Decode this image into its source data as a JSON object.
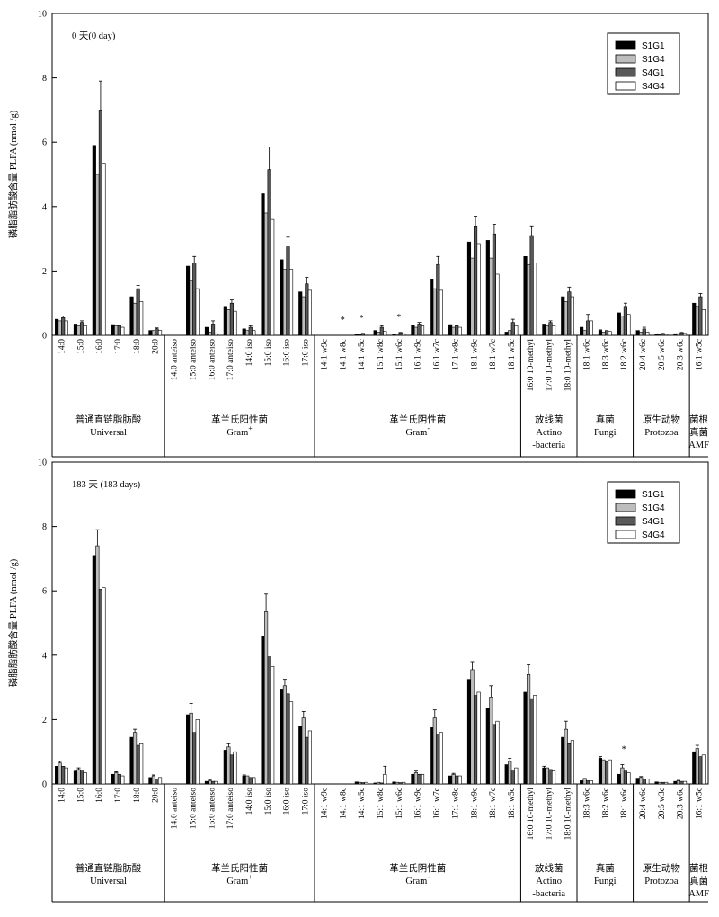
{
  "chart_data": [
    {
      "type": "bar",
      "title": "0 天(0 day)",
      "ylabel": "磷脂脂肪酸含量 PLFA (nmol /g)",
      "ylim": [
        0,
        10
      ],
      "yticks": [
        0,
        2,
        4,
        6,
        8,
        10
      ],
      "legend_position": "top-right",
      "categories": [
        "14:0",
        "15:0",
        "16:0",
        "17:0",
        "18:0",
        "20:0",
        "14:0 anteiso",
        "15:0 anteiso",
        "16:0 anteiso",
        "17:0 anteiso",
        "14:0 iso",
        "15:0 iso",
        "16:0 iso",
        "17:0 iso",
        "14:1 w9c",
        "14:1 w8c",
        "14:1 w5c",
        "15:1 w8c",
        "15:1 w6c",
        "16:1 w9c",
        "16:1 w7c",
        "17:1 w8c",
        "18:1 w9c",
        "18:1 w7c",
        "18:1 w5c",
        "16:0 10-methyl",
        "17:0 10-methyl",
        "18:0 10-methyl",
        "18:1 w6c",
        "18:3 w6c",
        "18:2 w6c",
        "20:4 w6c",
        "20:5 w6c",
        "20:3 w6c",
        "16:1 w5c"
      ],
      "series": [
        {
          "name": "S1G1",
          "values": [
            0.5,
            0.35,
            5.9,
            0.3,
            1.2,
            0.15,
            0.0,
            2.15,
            0.25,
            0.9,
            0.2,
            4.4,
            2.35,
            1.35,
            0.0,
            0.0,
            0.02,
            0.15,
            0.03,
            0.3,
            1.75,
            0.3,
            2.9,
            2.95,
            0.1,
            2.45,
            0.35,
            1.2,
            0.25,
            0.15,
            0.7,
            0.15,
            0.03,
            0.05,
            1.0
          ]
        },
        {
          "name": "S1G4",
          "values": [
            0.45,
            0.3,
            5.0,
            0.3,
            1.0,
            0.15,
            0.0,
            1.7,
            0.1,
            0.8,
            0.15,
            3.8,
            2.05,
            1.2,
            0.0,
            0.0,
            0.02,
            0.1,
            0.03,
            0.25,
            1.45,
            0.25,
            2.4,
            2.4,
            0.15,
            2.2,
            0.3,
            1.05,
            0.15,
            0.1,
            0.6,
            0.1,
            0.02,
            0.05,
            0.9
          ]
        },
        {
          "name": "S4G1",
          "values": [
            0.55,
            0.4,
            7.0,
            0.3,
            1.45,
            0.2,
            0.0,
            2.25,
            0.35,
            1.0,
            0.25,
            5.15,
            2.75,
            1.6,
            0.0,
            0.0,
            0.05,
            0.25,
            0.08,
            0.35,
            2.2,
            0.3,
            3.4,
            3.15,
            0.4,
            3.1,
            0.4,
            1.35,
            0.45,
            0.15,
            0.9,
            0.2,
            0.05,
            0.08,
            1.2
          ]
        },
        {
          "name": "S4G4",
          "values": [
            0.45,
            0.3,
            5.35,
            0.25,
            1.05,
            0.15,
            0.0,
            1.45,
            0.05,
            0.75,
            0.15,
            3.6,
            2.05,
            1.4,
            0.0,
            0.0,
            0.03,
            0.12,
            0.05,
            0.3,
            1.4,
            0.25,
            2.85,
            1.9,
            0.3,
            2.25,
            0.3,
            1.2,
            0.45,
            0.12,
            0.65,
            0.1,
            0.03,
            0.06,
            0.8
          ]
        }
      ],
      "error_bars": [
        0.05,
        0.05,
        0.9,
        0.03,
        0.1,
        0.03,
        0.0,
        0.2,
        0.1,
        0.1,
        0.05,
        0.7,
        0.3,
        0.2,
        0.0,
        0.0,
        0.01,
        0.05,
        0.01,
        0.05,
        0.25,
        0.03,
        0.3,
        0.3,
        0.1,
        0.3,
        0.05,
        0.15,
        0.2,
        0.02,
        0.1,
        0.05,
        0.01,
        0.01,
        0.1
      ],
      "asterisks": [
        "14:1 w8c",
        "14:1 w5c",
        "15:1 w6c"
      ],
      "groups": [
        {
          "label": "普通直链脂肪酸",
          "label2": "Universal",
          "start": 0,
          "end": 5
        },
        {
          "label": "革兰氏阳性菌",
          "label2": "Gram",
          "sup": "+",
          "start": 6,
          "end": 13
        },
        {
          "label": "革兰氏阴性菌",
          "label2": "Gram",
          "sup": "-",
          "start": 14,
          "end": 24
        },
        {
          "label": "放线菌",
          "label2": "Actino",
          "label3": "-bacteria",
          "start": 25,
          "end": 27
        },
        {
          "label": "真菌",
          "label2": "Fungi",
          "start": 28,
          "end": 30
        },
        {
          "label": "原生动物",
          "label2": "Protozoa",
          "start": 31,
          "end": 33
        },
        {
          "label": "菌根",
          "label2": "真菌",
          "label3": "AMF",
          "start": 34,
          "end": 34
        }
      ]
    },
    {
      "type": "bar",
      "title": "183 天 (183 days)",
      "ylabel": "磷脂脂肪酸含量 PLFA (nmol /g)",
      "ylim": [
        0,
        10
      ],
      "yticks": [
        0,
        2,
        4,
        6,
        8,
        10
      ],
      "legend_position": "top-right",
      "categories": [
        "14:0",
        "15:0",
        "16:0",
        "17:0",
        "18:0",
        "20:0",
        "14:0 anteiso",
        "15:0 anteiso",
        "16:0 anteiso",
        "17:0 anteiso",
        "14:0 iso",
        "15:0 iso",
        "16:0 iso",
        "17:0 iso",
        "14:1 w9c",
        "14:1 w8c",
        "14:1 w5c",
        "15:1 w8c",
        "15:1 w6c",
        "16:1 w9c",
        "16:1 w7c",
        "17:1 w8c",
        "18:1 w9c",
        "18:1 w7c",
        "18:1 w5c",
        "16:0 10-methyl",
        "17:0 10-methyl",
        "18:0 10-methyl",
        "18:3 w6c",
        "18:2 w6c",
        "18:1 w6c",
        "20:4 w6c",
        "20:5 w3c",
        "20:3 w6c",
        "16:1 w5c"
      ],
      "series": [
        {
          "name": "S1G1",
          "values": [
            0.55,
            0.4,
            7.1,
            0.3,
            1.45,
            0.2,
            0.0,
            2.15,
            0.08,
            1.05,
            0.25,
            4.6,
            2.95,
            1.8,
            0.0,
            0.0,
            0.05,
            0.03,
            0.05,
            0.3,
            1.75,
            0.25,
            3.25,
            2.35,
            0.6,
            2.85,
            0.5,
            1.45,
            0.1,
            0.8,
            0.3,
            0.18,
            0.05,
            0.08,
            1.0
          ]
        },
        {
          "name": "S1G4",
          "values": [
            0.65,
            0.45,
            7.4,
            0.35,
            1.6,
            0.25,
            0.0,
            2.2,
            0.1,
            1.15,
            0.25,
            5.35,
            3.05,
            2.05,
            0.0,
            0.0,
            0.05,
            0.05,
            0.05,
            0.35,
            2.05,
            0.3,
            3.55,
            2.7,
            0.7,
            3.4,
            0.5,
            1.7,
            0.15,
            0.75,
            0.5,
            0.2,
            0.05,
            0.1,
            1.1
          ]
        },
        {
          "name": "S4G1",
          "values": [
            0.55,
            0.4,
            6.05,
            0.3,
            1.2,
            0.15,
            0.0,
            1.6,
            0.08,
            0.9,
            0.2,
            3.95,
            2.8,
            1.45,
            0.0,
            0.0,
            0.04,
            0.03,
            0.04,
            0.3,
            1.55,
            0.25,
            2.75,
            1.85,
            0.4,
            2.65,
            0.45,
            1.25,
            0.1,
            0.7,
            0.4,
            0.15,
            0.05,
            0.08,
            0.85
          ]
        },
        {
          "name": "S4G4",
          "values": [
            0.5,
            0.35,
            6.1,
            0.25,
            1.25,
            0.2,
            0.0,
            2.0,
            0.08,
            1.0,
            0.2,
            3.65,
            2.55,
            1.65,
            0.0,
            0.0,
            0.05,
            0.3,
            0.05,
            0.3,
            1.6,
            0.25,
            2.85,
            1.95,
            0.5,
            2.75,
            0.4,
            1.35,
            0.1,
            0.75,
            0.35,
            0.15,
            0.05,
            0.08,
            0.9
          ]
        }
      ],
      "error_bars": [
        0.05,
        0.05,
        0.5,
        0.03,
        0.1,
        0.03,
        0.0,
        0.3,
        0.02,
        0.1,
        0.03,
        0.55,
        0.2,
        0.2,
        0.0,
        0.0,
        0.01,
        0.25,
        0.01,
        0.05,
        0.25,
        0.03,
        0.25,
        0.35,
        0.1,
        0.3,
        0.05,
        0.25,
        0.02,
        0.05,
        0.1,
        0.03,
        0.01,
        0.01,
        0.1
      ],
      "asterisks": [
        "18:1 w6c"
      ],
      "groups": [
        {
          "label": "普通直链脂肪酸",
          "label2": "Universal",
          "start": 0,
          "end": 5
        },
        {
          "label": "革兰氏阳性菌",
          "label2": "Gram",
          "sup": "+",
          "start": 6,
          "end": 13
        },
        {
          "label": "革兰氏阴性菌",
          "label2": "Gram",
          "sup": "-",
          "start": 14,
          "end": 24
        },
        {
          "label": "放线菌",
          "label2": "Actino",
          "label3": "-bacteria",
          "start": 25,
          "end": 27
        },
        {
          "label": "真菌",
          "label2": "Fungi",
          "start": 28,
          "end": 30
        },
        {
          "label": "原生动物",
          "label2": "Protozoa",
          "start": 31,
          "end": 33
        },
        {
          "label": "菌根",
          "label2": "真菌",
          "label3": "AMF",
          "start": 34,
          "end": 34
        }
      ]
    }
  ],
  "legend": {
    "items": [
      {
        "name": "S1G1",
        "color": "#000000"
      },
      {
        "name": "S1G4",
        "color": "#bdbdbd"
      },
      {
        "name": "S4G1",
        "color": "#595959"
      },
      {
        "name": "S4G4",
        "color": "#ffffff"
      }
    ]
  }
}
